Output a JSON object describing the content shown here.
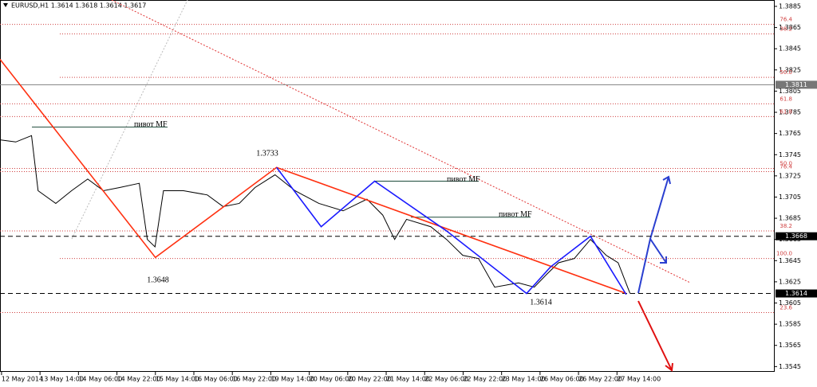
{
  "chart_data": {
    "type": "line",
    "title": "EURUSD,H1  1.3614 1.3618 1.3614 1.3617",
    "categories": [
      "12 May 2014",
      "13 May 14:00",
      "14 May 06:00",
      "14 May 22:00",
      "15 May 14:00",
      "16 May 06:00",
      "16 May 22:00",
      "19 May 14:00",
      "20 May 06:00",
      "20 May 22:00",
      "21 May 14:00",
      "22 May 06:00",
      "22 May 22:00",
      "23 May 14:00",
      "26 May 06:00",
      "26 May 22:00",
      "27 May 14:00"
    ],
    "xlim": [
      -0.04,
      20.08
    ],
    "ylim": [
      1.354,
      1.3891
    ],
    "yticks": [
      1.3885,
      1.3865,
      1.3845,
      1.3825,
      1.3805,
      1.3785,
      1.3765,
      1.3745,
      1.3725,
      1.3705,
      1.3685,
      1.3665,
      1.3645,
      1.3625,
      1.3605,
      1.3585,
      1.3565,
      1.3545
    ],
    "series": [
      {
        "color": "#000000",
        "x": [
          -0.04,
          0.37,
          0.78,
          0.95,
          1.41,
          1.82,
          2.24,
          2.65,
          3.07,
          3.58,
          3.79,
          3.99,
          4.21,
          4.73,
          5.35,
          5.76,
          6.18,
          6.59,
          7.11,
          7.63,
          8.25,
          8.88,
          9.5,
          9.91,
          10.22,
          10.53,
          11.16,
          11.57,
          11.99,
          12.4,
          12.82,
          13.44,
          13.85,
          14.17,
          14.48,
          14.89,
          15.31,
          15.72,
          16.03,
          16.34
        ],
        "values": [
          1.3759,
          1.3757,
          1.3763,
          1.3711,
          1.3699,
          1.3711,
          1.3722,
          1.3711,
          1.3714,
          1.3718,
          1.3665,
          1.3658,
          1.3711,
          1.3711,
          1.3707,
          1.3696,
          1.3699,
          1.3714,
          1.3726,
          1.3711,
          1.3699,
          1.3692,
          1.3703,
          1.3688,
          1.3665,
          1.3684,
          1.3677,
          1.3665,
          1.365,
          1.3647,
          1.362,
          1.3624,
          1.362,
          1.3632,
          1.3643,
          1.3647,
          1.3665,
          1.365,
          1.3643,
          1.3614
        ]
      },
      {
        "color": "#ff3010",
        "x": [
          -0.04,
          4.0,
          7.15,
          16.24
        ],
        "values": [
          1.3835,
          1.3648,
          1.3733,
          1.3614
        ]
      },
      {
        "color": "#1a1aff",
        "x": [
          7.15,
          8.31,
          9.7,
          11.57,
          13.65,
          14.27,
          15.31,
          16.24
        ],
        "values": [
          1.3733,
          1.3677,
          1.372,
          1.3673,
          1.3614,
          1.3639,
          1.3668,
          1.3613
        ]
      }
    ],
    "fib_levels": [
      {
        "value": 1.3868,
        "label": "76.4"
      },
      {
        "value": 1.3859,
        "label": "38.2"
      },
      {
        "value": 1.3818,
        "label": "50.0"
      },
      {
        "value": 1.3793,
        "label": "61.8"
      },
      {
        "value": 1.3781,
        "label": "61.8"
      },
      {
        "value": 1.3732,
        "label": "50.0"
      },
      {
        "value": 1.3729,
        "label": "76.4"
      },
      {
        "value": 1.3673,
        "label": "38.2"
      },
      {
        "value": 1.3647,
        "label": "100.0"
      },
      {
        "value": 1.3596,
        "label": "23.6"
      }
    ],
    "pivots": [
      {
        "value": 1.3771,
        "label": "пивот MF"
      },
      {
        "value": 1.372,
        "label": "пивот MF"
      },
      {
        "value": 1.3686,
        "label": "пивот MF"
      }
    ],
    "annotations": [
      1.3733,
      1.3648,
      1.3614
    ],
    "price_marks": [
      1.3811,
      1.3668,
      1.3614
    ]
  }
}
